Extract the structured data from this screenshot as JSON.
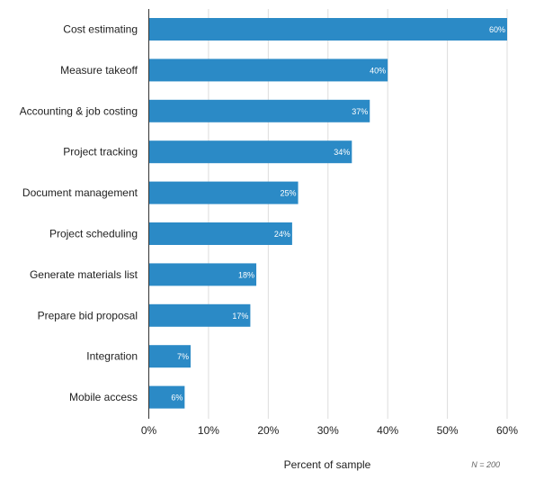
{
  "chart_data": {
    "type": "bar",
    "orientation": "horizontal",
    "categories": [
      "Cost estimating",
      "Measure takeoff",
      "Accounting & job costing",
      "Project tracking",
      "Document management",
      "Project scheduling",
      "Generate materials list",
      "Prepare bid proposal",
      "Integration",
      "Mobile access"
    ],
    "values": [
      60,
      40,
      37,
      34,
      25,
      24,
      18,
      17,
      7,
      6
    ],
    "value_labels": [
      "60%",
      "40%",
      "37%",
      "34%",
      "25%",
      "24%",
      "18%",
      "17%",
      "7%",
      "6%"
    ],
    "xlabel": "Percent of sample",
    "xlim": [
      0,
      60
    ],
    "ticks": [
      {
        "value": 0,
        "label": "0%"
      },
      {
        "value": 10,
        "label": "10%"
      },
      {
        "value": 20,
        "label": "20%"
      },
      {
        "value": 30,
        "label": "30%"
      },
      {
        "value": 40,
        "label": "40%"
      },
      {
        "value": 50,
        "label": "50%"
      },
      {
        "value": 60,
        "label": "60%"
      }
    ],
    "grid": true,
    "legend": "none",
    "note": "N = 200",
    "bar_color": "#2b8ac6"
  }
}
